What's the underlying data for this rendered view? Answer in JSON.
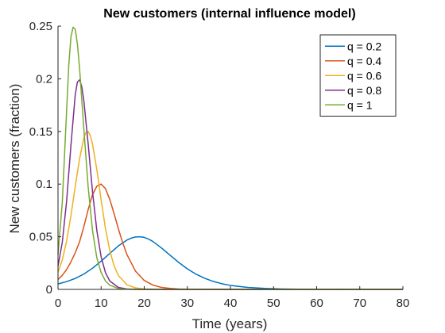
{
  "chart_data": {
    "type": "line",
    "title": "New customers (internal influence model)",
    "xlabel": "Time (years)",
    "ylabel": "New customers (fraction)",
    "xlim": [
      0,
      80
    ],
    "ylim": [
      0,
      0.25
    ],
    "xticks": [
      0,
      10,
      20,
      30,
      40,
      50,
      60,
      70,
      80
    ],
    "yticks": [
      0,
      0.05,
      0.1,
      0.15,
      0.2,
      0.25
    ],
    "xtick_labels": [
      "0",
      "10",
      "20",
      "30",
      "40",
      "50",
      "60",
      "70",
      "80"
    ],
    "ytick_labels": [
      "0",
      "0.05",
      "0.1",
      "0.15",
      "0.2",
      "0.25"
    ],
    "grid": false,
    "legend_position": "top-right",
    "series": [
      {
        "name": "q = 0.2",
        "color": "#0072BD",
        "x": [
          0,
          2,
          4,
          6,
          8,
          10,
          12,
          14,
          16,
          17,
          18,
          19,
          20,
          21,
          22,
          24,
          26,
          28,
          30,
          32,
          34,
          36,
          38,
          40,
          44,
          48,
          52,
          56,
          60,
          70,
          80
        ],
        "y": [
          0.0052,
          0.0074,
          0.0104,
          0.0146,
          0.0201,
          0.0268,
          0.0341,
          0.0413,
          0.0469,
          0.0487,
          0.0498,
          0.05,
          0.0494,
          0.0478,
          0.0455,
          0.0394,
          0.0324,
          0.0256,
          0.0195,
          0.0145,
          0.0106,
          0.0076,
          0.0054,
          0.0038,
          0.0019,
          0.0009,
          0.0004,
          0.0002,
          0.0001,
          0.0,
          0.0
        ]
      },
      {
        "name": "q = 0.4",
        "color": "#D95319",
        "x": [
          0,
          1,
          2,
          3,
          4,
          5,
          6,
          7,
          8,
          9,
          10,
          11,
          12,
          13,
          14,
          15,
          16,
          18,
          20,
          22,
          24,
          26,
          28,
          30,
          35,
          40,
          50,
          60,
          70,
          80
        ],
        "y": [
          0.0093,
          0.0134,
          0.0189,
          0.0261,
          0.0349,
          0.0451,
          0.0597,
          0.0758,
          0.09,
          0.098,
          0.1,
          0.0957,
          0.0856,
          0.072,
          0.0576,
          0.0443,
          0.033,
          0.0172,
          0.0085,
          0.0041,
          0.0019,
          0.0009,
          0.0004,
          0.0002,
          0.0,
          0.0,
          0.0,
          0.0,
          0.0,
          0.0
        ]
      },
      {
        "name": "q = 0.6",
        "color": "#EDB120",
        "x": [
          0,
          1,
          2,
          3,
          4,
          5,
          6,
          6.5,
          7,
          7.5,
          8,
          9,
          10,
          11,
          12,
          13,
          14,
          16,
          18,
          20,
          25,
          30,
          40,
          50,
          60,
          70,
          80
        ],
        "y": [
          0.0163,
          0.028,
          0.046,
          0.07,
          0.098,
          0.124,
          0.144,
          0.149,
          0.15,
          0.146,
          0.138,
          0.114,
          0.085,
          0.058,
          0.037,
          0.0225,
          0.0132,
          0.0043,
          0.0014,
          0.0004,
          0.0,
          0.0,
          0.0,
          0.0,
          0.0,
          0.0,
          0.0
        ]
      },
      {
        "name": "q = 0.8",
        "color": "#7E2F8E",
        "x": [
          0,
          1,
          2,
          3,
          4,
          4.5,
          5,
          5.5,
          6,
          7,
          8,
          9,
          10,
          11,
          12,
          14,
          16,
          18,
          20,
          30,
          40,
          50,
          60,
          70,
          80
        ],
        "y": [
          0.022,
          0.045,
          0.084,
          0.137,
          0.185,
          0.197,
          0.199,
          0.193,
          0.179,
          0.138,
          0.093,
          0.056,
          0.031,
          0.016,
          0.008,
          0.0019,
          0.0004,
          0.0001,
          0.0,
          0.0,
          0.0,
          0.0,
          0.0,
          0.0,
          0.0
        ]
      },
      {
        "name": "q = 1",
        "color": "#77AC30",
        "x": [
          0,
          1,
          2,
          2.5,
          3,
          3.5,
          4,
          4.5,
          5,
          6,
          7,
          8,
          9,
          10,
          11,
          12,
          14,
          16,
          18,
          20,
          30,
          40,
          50,
          60,
          70,
          80
        ],
        "y": [
          0.033,
          0.083,
          0.17,
          0.213,
          0.24,
          0.249,
          0.247,
          0.233,
          0.21,
          0.152,
          0.097,
          0.056,
          0.03,
          0.016,
          0.008,
          0.004,
          0.0008,
          0.0002,
          0.0,
          0.0,
          0.0,
          0.0,
          0.0,
          0.0,
          0.0,
          0.0
        ]
      }
    ]
  }
}
